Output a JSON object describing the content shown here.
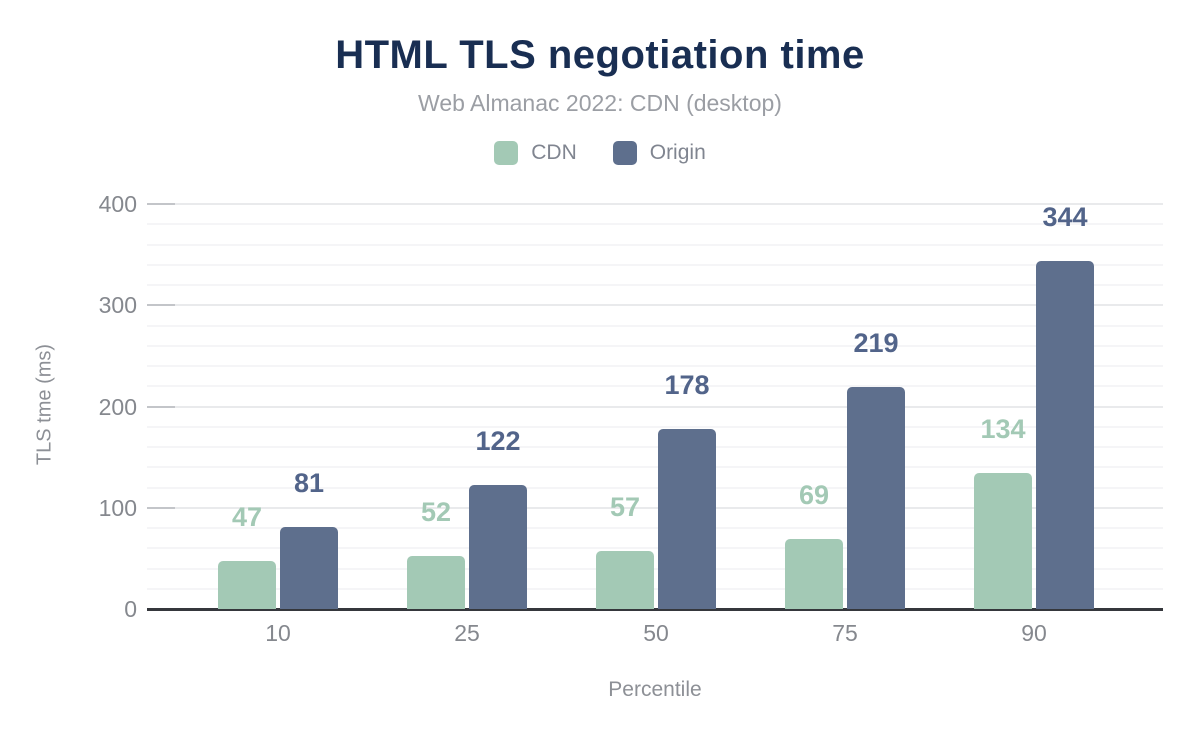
{
  "colors": {
    "title": "#192e52",
    "subtitle": "#9b9ea4",
    "legend_text": "#808590",
    "axis_text": "#85888e",
    "axis_title_text": "#8d9096",
    "axis_line": "#35373c",
    "tick_mark": "#c3c5c9",
    "grid_major": "#e9eaec",
    "grid_minor": "#f5f5f7",
    "cdn_bar": "#a3c9b5",
    "origin_bar": "#5e6f8d",
    "cdn_value_label": "#a3c9b5",
    "origin_value_label": "#52648a"
  },
  "chart_data": {
    "type": "bar",
    "title": "HTML TLS negotiation time",
    "subtitle": "Web Almanac 2022: CDN (desktop)",
    "categories": [
      "10",
      "25",
      "50",
      "75",
      "90"
    ],
    "series": [
      {
        "name": "CDN",
        "values": [
          47,
          52,
          57,
          69,
          134
        ],
        "color": "#a3c9b5",
        "label_color": "#a3c9b5"
      },
      {
        "name": "Origin",
        "values": [
          81,
          122,
          178,
          219,
          344
        ],
        "color": "#5e6f8d",
        "label_color": "#52648a"
      }
    ],
    "xlabel": "Percentile",
    "ylabel": "TLS tme (ms)",
    "ylim": [
      0,
      400
    ],
    "yticks": [
      0,
      100,
      200,
      300,
      400
    ],
    "minor_tick_step": 20,
    "grid": "on",
    "legend_position": "top",
    "value_labels": "above-bars"
  }
}
